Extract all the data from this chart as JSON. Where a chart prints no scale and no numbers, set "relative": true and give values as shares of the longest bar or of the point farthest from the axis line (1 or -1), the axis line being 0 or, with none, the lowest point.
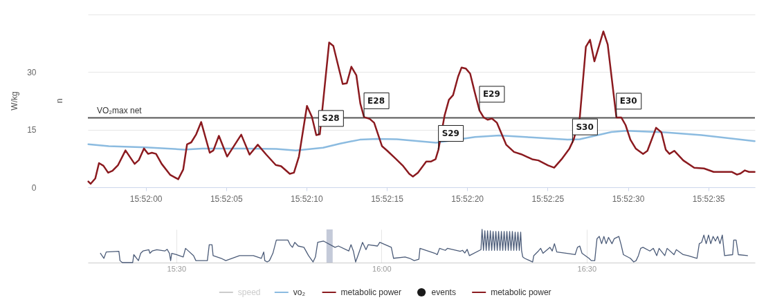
{
  "chart_data": [
    {
      "type": "line",
      "ylabel": "W/kg",
      "y2label": "n",
      "xlim": [
        15.865667,
        15.877194
      ],
      "xticks": [
        {
          "value": 15.866667,
          "label": "15:52:00"
        },
        {
          "value": 15.868056,
          "label": "15:52:05"
        },
        {
          "value": 15.869444,
          "label": "15:52:10"
        },
        {
          "value": 15.870833,
          "label": "15:52:15"
        },
        {
          "value": 15.872222,
          "label": "15:52:20"
        },
        {
          "value": 15.873611,
          "label": "15:52:25"
        },
        {
          "value": 15.875,
          "label": "15:52:30"
        },
        {
          "value": 15.876389,
          "label": "15:52:35"
        }
      ],
      "ylim": [
        0,
        45
      ],
      "yticks": [
        0,
        15,
        30,
        {
          "value": 45,
          "label": null
        }
      ],
      "grid": "y",
      "legend": "bottom",
      "line_style": "solid",
      "ref_lines": [
        {
          "axis": "y",
          "value": 18.1,
          "label": "VO₂max net",
          "color": "#555555"
        }
      ],
      "annotations": [
        {
          "text": "S28",
          "x": 15.869653,
          "y": 13.7
        },
        {
          "text": "E28",
          "x": 15.870439,
          "y": 18.3
        },
        {
          "text": "S29",
          "x": 15.871725,
          "y": 9.8
        },
        {
          "text": "E29",
          "x": 15.872434,
          "y": 20.0
        },
        {
          "text": "S30",
          "x": 15.874042,
          "y": 11.5
        },
        {
          "text": "E30",
          "x": 15.8748,
          "y": 18.2
        }
      ],
      "series": [
        {
          "name": "speed",
          "color": "#cccccc"
        },
        {
          "name": "vo₂",
          "color": "#8bbbe0",
          "x": [
            15.865675,
            15.866028,
            15.866667,
            15.86705,
            15.867328,
            15.867645,
            15.868411,
            15.868923,
            15.869261,
            15.869731,
            15.870028,
            15.870367,
            15.870667,
            15.871009,
            15.871684,
            15.872356,
            15.872778,
            15.873325,
            15.873956,
            15.874167,
            15.874714,
            15.874967,
            15.875639,
            15.87627,
            15.877189
          ],
          "values": [
            11.2,
            10.7,
            10.4,
            10.1,
            9.8,
            10.1,
            10.1,
            10.0,
            9.6,
            10.3,
            11.4,
            12.4,
            12.6,
            12.5,
            11.6,
            13.1,
            13.5,
            13.0,
            12.4,
            12.5,
            14.4,
            14.7,
            14.3,
            13.6,
            12.0
          ]
        },
        {
          "name": "metabolic power",
          "color": "#8b1a1f",
          "x": [
            15.865675,
            15.865714,
            15.865795,
            15.865859,
            15.865936,
            15.866017,
            15.866092,
            15.866189,
            15.866317,
            15.866475,
            15.866548,
            15.866636,
            15.866709,
            15.866773,
            15.866845,
            15.866942,
            15.867092,
            15.867228,
            15.867314,
            15.867381,
            15.867453,
            15.867539,
            15.867625,
            15.867773,
            15.867836,
            15.867931,
            15.868073,
            15.868317,
            15.868461,
            15.868603,
            15.86875,
            15.868914,
            15.869006,
            15.869156,
            15.869228,
            15.869314,
            15.869453,
            15.869539,
            15.869614,
            15.869675,
            15.869836,
            15.869909,
            15.87007,
            15.870142,
            15.87022,
            15.870306,
            15.870375,
            15.870439,
            15.870539,
            15.870614,
            15.87075,
            15.870842,
            15.870989,
            15.871117,
            15.87122,
            15.871284,
            15.87137,
            15.871514,
            15.871592,
            15.871675,
            15.871725,
            15.871831,
            15.871906,
            15.871978,
            15.872064,
            15.872125,
            15.8722,
            15.872273,
            15.872348,
            15.872434,
            15.872506,
            15.872575,
            15.87265,
            15.872736,
            15.872895,
            15.873031,
            15.873156,
            15.873345,
            15.873453,
            15.87362,
            15.873725,
            15.873853,
            15.873989,
            15.874061,
            15.874167,
            15.874273,
            15.874345,
            15.87442,
            15.874575,
            15.87465,
            15.8748,
            15.874884,
            15.874959,
            15.875042,
            15.875134,
            15.875261,
            15.875336,
            15.875486,
            15.875578,
            15.875653,
            15.875717,
            15.8758,
            15.875956,
            15.876145,
            15.876314,
            15.876481,
            15.876798,
            15.876884,
            15.876945,
            15.87702,
            15.877092,
            15.877189
          ],
          "values": [
            1.5,
            0.9,
            2.3,
            6.3,
            5.6,
            3.8,
            4.3,
            5.8,
            9.6,
            6.1,
            7.1,
            10.1,
            8.7,
            9.0,
            8.7,
            6.1,
            3.2,
            2.1,
            4.6,
            11.2,
            11.7,
            13.8,
            17.0,
            9.0,
            9.6,
            13.4,
            8.0,
            13.7,
            8.5,
            11.1,
            8.5,
            5.8,
            5.5,
            3.5,
            3.8,
            8.0,
            21.2,
            18.3,
            13.6,
            13.8,
            37.7,
            36.8,
            26.9,
            27.1,
            31.4,
            29.2,
            21.8,
            18.3,
            17.8,
            16.8,
            10.7,
            9.5,
            7.4,
            5.5,
            3.5,
            2.8,
            3.8,
            6.7,
            6.7,
            7.3,
            9.8,
            18.7,
            22.8,
            24.0,
            28.8,
            31.2,
            30.9,
            29.6,
            25.0,
            20.0,
            18.2,
            17.6,
            17.9,
            16.8,
            11.1,
            9.2,
            8.6,
            7.3,
            7.0,
            5.7,
            5.1,
            7.3,
            10.1,
            12.4,
            18.1,
            36.6,
            38.4,
            32.8,
            40.6,
            37.2,
            18.2,
            18.2,
            16.2,
            12.4,
            10.1,
            8.7,
            9.5,
            15.5,
            14.3,
            9.8,
            8.7,
            9.5,
            7.0,
            5.1,
            4.9,
            4.0,
            4.0,
            3.3,
            3.6,
            4.4,
            4.0,
            4.0
          ]
        },
        {
          "name": "events",
          "type": "scatter",
          "color": "#1a1a1a"
        },
        {
          "name": "metabolic power",
          "color": "#8b1a1f"
        }
      ]
    },
    {
      "type": "line",
      "relative": true,
      "color": "#4b5b78",
      "grid": "x",
      "xlim": [
        15.2844,
        16.9101
      ],
      "xticks": [
        {
          "value": 15.5,
          "label": "15:30"
        },
        {
          "value": 16,
          "label": "16:00"
        },
        {
          "value": 16.5,
          "label": "16:30"
        }
      ],
      "bands": [
        {
          "axis": "x",
          "from": 15.8659,
          "to": 15.881,
          "color": "#c4cad9"
        }
      ],
      "x": [
        15.3151,
        15.3235,
        15.3291,
        15.36,
        15.3627,
        15.3684,
        15.3936,
        15.3963,
        15.4076,
        15.4131,
        15.4188,
        15.4328,
        15.4356,
        15.4412,
        15.4524,
        15.4719,
        15.4776,
        15.4832,
        15.4861,
        15.4887,
        15.5,
        15.5168,
        15.5224,
        15.542,
        15.5476,
        15.5756,
        15.5802,
        15.5869,
        15.5896,
        15.6092,
        15.6205,
        15.6541,
        15.6877,
        15.7072,
        15.7129,
        15.7156,
        15.7213,
        15.7269,
        15.7353,
        15.7437,
        15.7718,
        15.7773,
        15.7829,
        15.7886,
        15.797,
        15.8109,
        15.8222,
        15.8333,
        15.839,
        15.8445,
        15.8585,
        15.8866,
        15.895,
        15.9202,
        15.9257,
        15.9314,
        15.937,
        15.9425,
        15.9538,
        15.9622,
        15.9677,
        15.9902,
        15.9958,
        16.0239,
        16.0294,
        16.0575,
        16.0686,
        16.0798,
        16.0911,
        16.0938,
        16.1303,
        16.1358,
        16.1415,
        16.1555,
        16.161,
        16.1919,
        16.1975,
        16.203,
        16.2087,
        16.2143,
        16.2424,
        16.2451,
        16.2485,
        16.2518,
        16.2552,
        16.2585,
        16.2619,
        16.2653,
        16.2686,
        16.272,
        16.2754,
        16.2787,
        16.2821,
        16.2854,
        16.2888,
        16.2922,
        16.2955,
        16.2989,
        16.3022,
        16.3056,
        16.309,
        16.3123,
        16.3157,
        16.319,
        16.3224,
        16.3258,
        16.3291,
        16.3325,
        16.3359,
        16.3392,
        16.3415,
        16.3443,
        16.3487,
        16.3684,
        16.3711,
        16.3824,
        16.3879,
        16.3936,
        16.4104,
        16.416,
        16.4215,
        16.4272,
        16.4524,
        16.4719,
        16.4776,
        16.4832,
        16.4887,
        16.5056,
        16.5113,
        16.5197,
        16.5252,
        16.5308,
        16.5365,
        16.542,
        16.5476,
        16.5533,
        16.5617,
        16.5672,
        16.5785,
        16.584,
        16.5896,
        16.6064,
        16.6148,
        16.6205,
        16.6261,
        16.6316,
        16.6373,
        16.6541,
        16.6625,
        16.6709,
        16.6765,
        16.6904,
        16.6961,
        16.7129,
        16.7185,
        16.7353,
        16.7466,
        16.7689,
        16.7745,
        16.7802,
        16.7857,
        16.7913,
        16.797,
        16.8025,
        16.8081,
        16.8138,
        16.8193,
        16.8249,
        16.8306,
        16.8361,
        16.8558,
        16.8585,
        16.8642,
        16.8697,
        16.8921
      ],
      "values": [
        0.28,
        0.13,
        0.32,
        0.34,
        0.06,
        0,
        0,
        0.24,
        0.06,
        0.28,
        0.35,
        0.39,
        0.28,
        0.35,
        0.39,
        0.35,
        0.4,
        0.28,
        0.06,
        0.28,
        0.24,
        0.17,
        0.43,
        0.21,
        0.06,
        0.06,
        0.54,
        0.54,
        0.21,
        0.13,
        0.06,
        0.21,
        0.21,
        0.13,
        0.32,
        0.06,
        0.02,
        0.06,
        0.28,
        0.68,
        0.68,
        0.54,
        0.46,
        0.61,
        0.5,
        0.46,
        0.21,
        0.02,
        0.17,
        0.61,
        0.65,
        0.46,
        0.5,
        0.35,
        0.54,
        0.35,
        0.02,
        0.21,
        0.61,
        0.39,
        0.54,
        0.5,
        0.61,
        0.46,
        0.13,
        0.17,
        0.13,
        0.06,
        0.1,
        0.43,
        0.28,
        0.24,
        0.43,
        0.37,
        0.43,
        0.34,
        0.37,
        0.29,
        0.4,
        0.21,
        0.39,
        1,
        0.37,
        0.96,
        0.37,
        0.96,
        0.37,
        0.96,
        0.37,
        0.94,
        0.37,
        0.94,
        0.37,
        0.94,
        0.37,
        0.94,
        0.37,
        0.94,
        0.37,
        0.94,
        0.37,
        0.94,
        0.37,
        0.94,
        0.37,
        0.92,
        0.37,
        0.92,
        0.37,
        0.92,
        0.35,
        0.17,
        0.13,
        0.02,
        0.21,
        0.35,
        0.43,
        0.28,
        0.46,
        0.35,
        0.57,
        0.32,
        0.28,
        0.24,
        0.46,
        0.5,
        0.28,
        0.13,
        0.06,
        0.06,
        0.72,
        0.79,
        0.57,
        0.79,
        0.57,
        0.76,
        0.57,
        0.72,
        0.79,
        0.54,
        0.24,
        0.13,
        0.02,
        0.06,
        0.21,
        0.43,
        0.46,
        0.35,
        0.43,
        0.21,
        0.43,
        0.21,
        0.43,
        0.24,
        0.39,
        0.24,
        0.21,
        0.13,
        0.57,
        0.61,
        0.83,
        0.57,
        0.83,
        0.57,
        0.79,
        0.65,
        0.79,
        0.57,
        0.83,
        0.21,
        0.24,
        0.68,
        0.68,
        0.24,
        0.21
      ]
    }
  ]
}
